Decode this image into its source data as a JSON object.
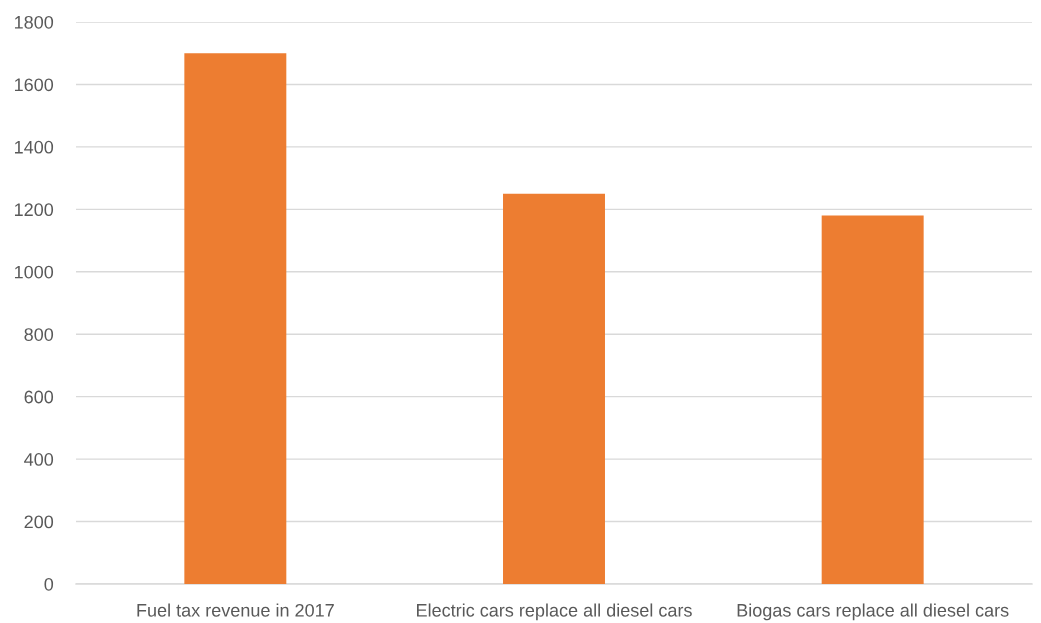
{
  "chart_data": {
    "type": "bar",
    "categories": [
      "Fuel tax revenue in 2017",
      "Electric cars replace all diesel cars",
      "Biogas cars replace all diesel cars"
    ],
    "values": [
      1700,
      1250,
      1180
    ],
    "color": "#ed7d31",
    "ylim": [
      0,
      1800
    ],
    "yticks": [
      0,
      200,
      400,
      600,
      800,
      1000,
      1200,
      1400,
      1600,
      1800
    ],
    "grid": "y",
    "legend": false
  }
}
